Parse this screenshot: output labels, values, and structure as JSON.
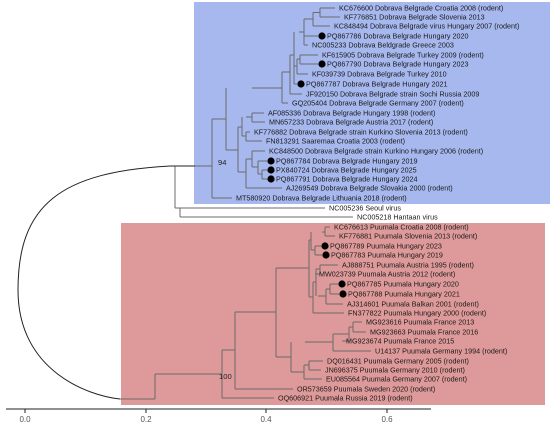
{
  "x_axis": {
    "ticks": [
      "0.0",
      "0.2",
      "0.4",
      "0.6"
    ]
  },
  "clades": [
    {
      "name": "dobrava",
      "color": "#a6b8ee"
    },
    {
      "name": "puumala",
      "color": "#de9a9a"
    }
  ],
  "bootstrap_labels": [
    "94",
    "100"
  ],
  "tips": [
    {
      "label": "KC676600 Dobrava Belgrade Croatia 2008 (rodent)",
      "marked": false
    },
    {
      "label": "KF776851 Dobrava Belgrade Slovenia 2013",
      "marked": false
    },
    {
      "label": "KC848494 Dobrava Belgrade virus Hungary 2007 (rodent)",
      "marked": false
    },
    {
      "label": "PQ867786 Dobrava Belgrade Hungary 2020",
      "marked": true
    },
    {
      "label": "NC005233 Dobrava Beldgrade Greece 2003",
      "marked": false
    },
    {
      "label": "KF615905 Dobrava Belgrade Turkey 2009 (rodent)",
      "marked": false
    },
    {
      "label": "PQ867790 Dobrava Belgrade Hungary 2023",
      "marked": true
    },
    {
      "label": "KF039739 Dobrava Belgrade Turkey 2010",
      "marked": false
    },
    {
      "label": "PQ867787 Dobrava Belgrade Hungary 2021",
      "marked": true
    },
    {
      "label": "JF920150 Dobrava Belgrade strain Sochi Russia 2009",
      "marked": false
    },
    {
      "label": "GQ205404 Dobrava Belgrade Germany 2007 (rodent)",
      "marked": false
    },
    {
      "label": "AF085336 Dobrava Belgrade Hungary 1998 (rodent)",
      "marked": false
    },
    {
      "label": "MN657233 Dobrava Belgrade Austria 2017 (rodent)",
      "marked": false
    },
    {
      "label": "KF776882 Dobrava Belgrade strain Kurkino Slovenia 2013 (rodent)",
      "marked": false
    },
    {
      "label": "FN813291 Saaremaa Croatia 2003 (rodent)",
      "marked": false
    },
    {
      "label": "KC848500 Dobrava Belgrade strain Kurkino Hungary 2006 (rodent)",
      "marked": false
    },
    {
      "label": "PQ867784 Dobrava Belgrade Hungary 2019",
      "marked": true
    },
    {
      "label": "PX840724 Dobrava Belgrade Hungary 2025",
      "marked": true
    },
    {
      "label": "PQ867791 Dobrava Belgrade Hungary 2024",
      "marked": true
    },
    {
      "label": "AJ269549 Dobrava Belgrade Slovakia 2000 (rodent)",
      "marked": false
    },
    {
      "label": "MT580920 Dobrava Belgrade Lithuania 2018 (rodent)",
      "marked": false
    },
    {
      "label": "NC005236 Seoul virus",
      "marked": false
    },
    {
      "label": "NC005218 Hantaan virus",
      "marked": false
    },
    {
      "label": "KC676613 Puumala Croatia 2008 (rodent)",
      "marked": false
    },
    {
      "label": "KF776881 Puumala Slovenia 2013 (rodent)",
      "marked": false
    },
    {
      "label": "PQ867789 Puumala Hungary 2023",
      "marked": true
    },
    {
      "label": "PQ867783 Puumala Hungary 2019",
      "marked": true
    },
    {
      "label": "AJ888751 Puumala Austria 1995 (rodent)",
      "marked": false
    },
    {
      "label": "MW023739 Puumala Austria 2012 (rodent)",
      "marked": false
    },
    {
      "label": "PQ867785 Puumala Hungary 2020",
      "marked": true
    },
    {
      "label": "PQ867788 Puumala Hungary 2021",
      "marked": true
    },
    {
      "label": "AJ314601 Puumala Balkan 2001 (rodent)",
      "marked": false
    },
    {
      "label": "FN377822 Puumala Hungary 2000 (rodent)",
      "marked": false
    },
    {
      "label": "MG923616 Puumala France 2013",
      "marked": false
    },
    {
      "label": "MG923663 Puumala France 2016",
      "marked": false
    },
    {
      "label": "MG923674 Puumala France 2015",
      "marked": false
    },
    {
      "label": "U14137 Puumala Germany 1994 (rodent)",
      "marked": false
    },
    {
      "label": "DQ016431 Puumala Germany 2005 (rodent)",
      "marked": false
    },
    {
      "label": "JN696375 Puumala Germany 2010 (rodent)",
      "marked": false
    },
    {
      "label": "EU085564 Puumala Germany 2007 (rodent)",
      "marked": false
    },
    {
      "label": "OR573659 Puumala Sweden 2020 (rodent)",
      "marked": false
    },
    {
      "label": "OQ606921 Puumala Russia 2019 (rodent)",
      "marked": false
    }
  ]
}
